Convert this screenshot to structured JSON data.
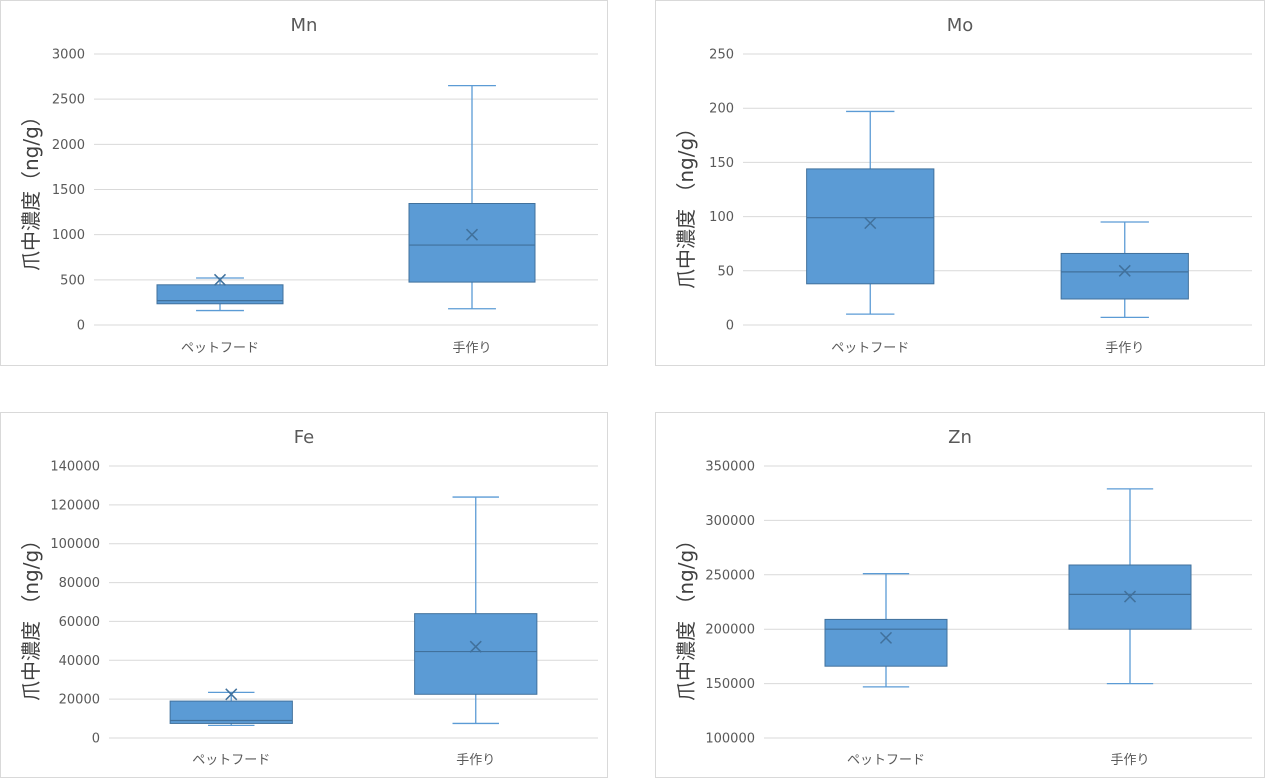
{
  "colors": {
    "box_fill": "#5b9bd5",
    "box_stroke": "#41719c",
    "grid": "#d9d9d9",
    "text": "#595959"
  },
  "chart_data": [
    {
      "type": "box",
      "title": "Mn",
      "ylabel": "爪中濃度（ng/g）",
      "categories": [
        "ペットフード",
        "手作り"
      ],
      "ylim": [
        0,
        3000
      ],
      "yticks": [
        0,
        500,
        1000,
        1500,
        2000,
        2500,
        3000
      ],
      "boxes": [
        {
          "min": 160,
          "q1": 235,
          "median": 270,
          "q3": 445,
          "max": 520,
          "mean": 500
        },
        {
          "min": 180,
          "q1": 475,
          "median": 885,
          "q3": 1345,
          "max": 2650,
          "mean": 1000
        }
      ]
    },
    {
      "type": "box",
      "title": "Mo",
      "ylabel": "爪中濃度 （ng/g）",
      "categories": [
        "ペットフード",
        "手作り"
      ],
      "ylim": [
        0,
        250
      ],
      "yticks": [
        0,
        50,
        100,
        150,
        200,
        250
      ],
      "boxes": [
        {
          "min": 10,
          "q1": 38,
          "median": 99,
          "q3": 144,
          "max": 197,
          "mean": 94
        },
        {
          "min": 7,
          "q1": 24,
          "median": 49,
          "q3": 66,
          "max": 95,
          "mean": 50
        }
      ]
    },
    {
      "type": "box",
      "title": "Fe",
      "ylabel": "爪中濃度 （ng/g）",
      "categories": [
        "ペットフード",
        "手作り"
      ],
      "ylim": [
        0,
        140000
      ],
      "yticks": [
        0,
        20000,
        40000,
        60000,
        80000,
        100000,
        120000,
        140000
      ],
      "boxes": [
        {
          "min": 6500,
          "q1": 7500,
          "median": 9000,
          "q3": 19000,
          "max": 23500,
          "mean": 22500
        },
        {
          "min": 7500,
          "q1": 22500,
          "median": 44500,
          "q3": 64000,
          "max": 124000,
          "mean": 47000
        }
      ]
    },
    {
      "type": "box",
      "title": "Zn",
      "ylabel": "爪中濃度 （ng/g）",
      "categories": [
        "ペットフード",
        "手作り"
      ],
      "ylim": [
        100000,
        350000
      ],
      "yticks": [
        100000,
        150000,
        200000,
        250000,
        300000,
        350000
      ],
      "boxes": [
        {
          "min": 147000,
          "q1": 166000,
          "median": 200000,
          "q3": 209000,
          "max": 251000,
          "mean": 192000
        },
        {
          "min": 150000,
          "q1": 200000,
          "median": 232000,
          "q3": 259000,
          "max": 329000,
          "mean": 230000
        }
      ]
    }
  ]
}
